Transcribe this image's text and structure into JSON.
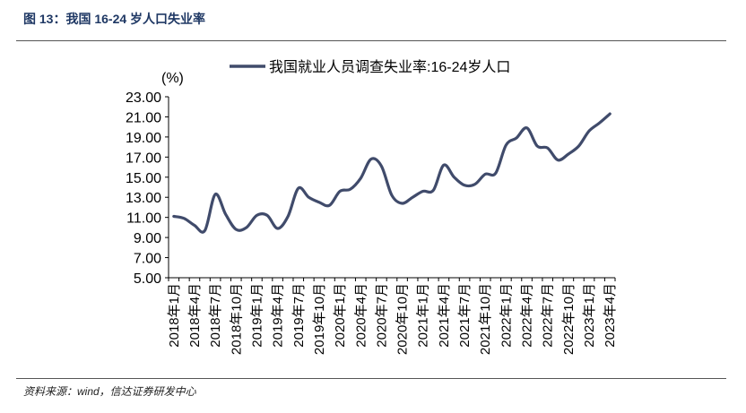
{
  "figure": {
    "title": "图 13：我国 16-24 岁人口失业率",
    "source": "资料来源：wind，信达证券研发中心"
  },
  "chart_data": {
    "type": "line",
    "title": "",
    "ylabel": "(%)",
    "xlabel": "",
    "ylim": [
      5,
      23
    ],
    "yticks": [
      "5.00",
      "7.00",
      "9.00",
      "11.00",
      "13.00",
      "15.00",
      "17.00",
      "19.00",
      "21.00",
      "23.00"
    ],
    "xtick_labels": [
      "2018年1月",
      "2018年4月",
      "2018年7月",
      "2018年10月",
      "2019年1月",
      "2019年4月",
      "2019年7月",
      "2019年10月",
      "2020年1月",
      "2020年4月",
      "2020年7月",
      "2020年10月",
      "2021年1月",
      "2021年4月",
      "2021年7月",
      "2021年10月",
      "2022年1月",
      "2022年4月",
      "2022年7月",
      "2022年10月",
      "2023年1月",
      "2023年4月"
    ],
    "legend": "top",
    "grid": false,
    "series": [
      {
        "name": "我国就业人员调查失业率:16-24岁人口",
        "color": "#404b6b",
        "values": [
          11.1,
          10.9,
          10.2,
          9.7,
          13.3,
          11.3,
          9.8,
          10.0,
          11.2,
          11.2,
          9.9,
          11.1,
          13.9,
          13.0,
          12.5,
          12.2,
          13.6,
          13.8,
          14.9,
          16.8,
          16.1,
          13.2,
          12.4,
          13.0,
          13.6,
          13.7,
          16.2,
          15.0,
          14.2,
          14.3,
          15.3,
          15.4,
          18.2,
          18.9,
          19.9,
          18.1,
          17.9,
          16.7,
          17.3,
          18.1,
          19.6,
          20.4,
          21.3
        ]
      }
    ]
  }
}
